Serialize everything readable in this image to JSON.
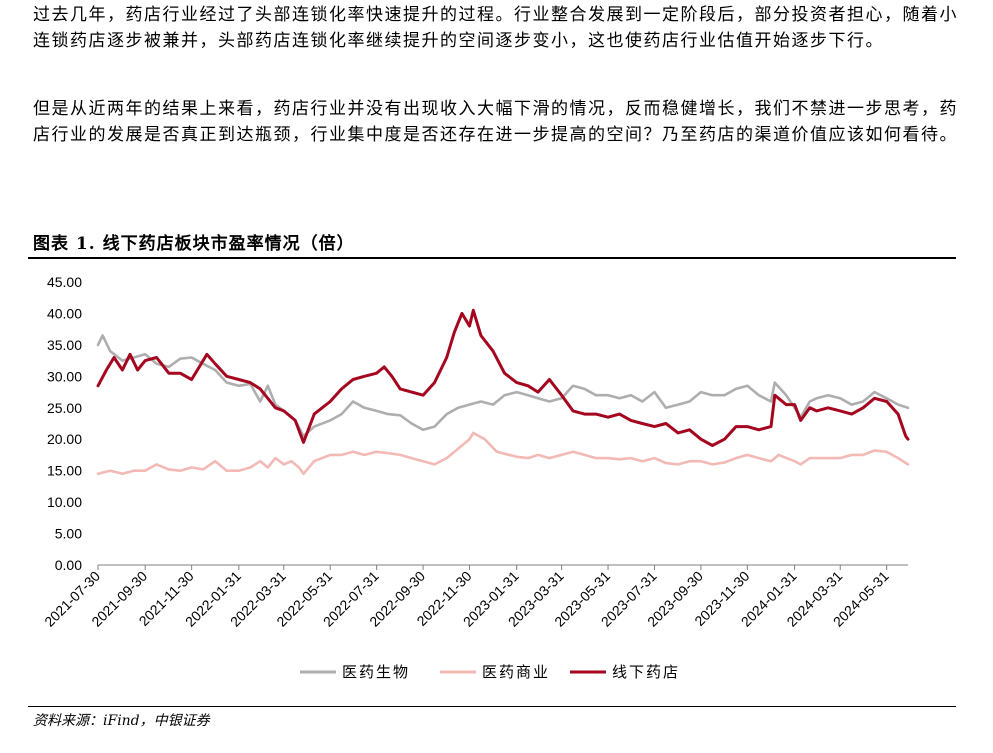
{
  "paragraphs": [
    "过去几年，药店行业经过了头部连锁化率快速提升的过程。行业整合发展到一定阶段后，部分投资者担心，随着小连锁药店逐步被兼并，头部药店连锁化率继续提升的空间逐步变小，这也使药店行业估值开始逐步下行。",
    "但是从近两年的结果上来看，药店行业并没有出现收入大幅下滑的情况，反而稳健增长，我们不禁进一步思考，药店行业的发展是否真正到达瓶颈，行业集中度是否还存在进一步提高的空间？乃至药店的渠道价值应该如何看待。"
  ],
  "figure_title": "图表 1. 线下药店板块市盈率情况（倍）",
  "source": "资料来源：iFind，中银证券",
  "chart_data": {
    "type": "line",
    "title": "图表 1. 线下药店板块市盈率情况（倍）",
    "ylim": [
      0,
      45
    ],
    "yticks": [
      "0.00",
      "5.00",
      "10.00",
      "15.00",
      "20.00",
      "25.00",
      "30.00",
      "35.00",
      "40.00",
      "45.00"
    ],
    "x_start": "2021-07-30",
    "x_end": "2024-06-28",
    "xticks": [
      "2021-07-30",
      "2021-09-30",
      "2021-11-30",
      "2022-01-31",
      "2022-03-31",
      "2022-05-31",
      "2022-07-31",
      "2022-09-30",
      "2022-11-30",
      "2023-01-31",
      "2023-03-31",
      "2023-05-31",
      "2023-07-31",
      "2023-09-30",
      "2023-11-30",
      "2024-01-31",
      "2024-03-31",
      "2024-05-31"
    ],
    "grid": false,
    "legend_position": "bottom",
    "series": [
      {
        "name": "医药生物",
        "color": "#aeaeae",
        "points": [
          [
            "2021-07-30",
            35.0
          ],
          [
            "2021-08-05",
            36.5
          ],
          [
            "2021-08-15",
            34.0
          ],
          [
            "2021-08-31",
            32.5
          ],
          [
            "2021-09-15",
            33.0
          ],
          [
            "2021-09-30",
            33.5
          ],
          [
            "2021-10-15",
            32.0
          ],
          [
            "2021-10-31",
            31.5
          ],
          [
            "2021-11-15",
            32.8
          ],
          [
            "2021-11-30",
            33.0
          ],
          [
            "2021-12-15",
            32.0
          ],
          [
            "2021-12-31",
            31.0
          ],
          [
            "2022-01-15",
            29.0
          ],
          [
            "2022-01-31",
            28.5
          ],
          [
            "2022-02-15",
            28.8
          ],
          [
            "2022-02-28",
            26.0
          ],
          [
            "2022-03-10",
            28.5
          ],
          [
            "2022-03-20",
            25.5
          ],
          [
            "2022-03-31",
            24.5
          ],
          [
            "2022-04-15",
            23.0
          ],
          [
            "2022-04-26",
            20.5
          ],
          [
            "2022-05-10",
            22.0
          ],
          [
            "2022-05-31",
            23.0
          ],
          [
            "2022-06-15",
            24.0
          ],
          [
            "2022-06-30",
            26.0
          ],
          [
            "2022-07-15",
            25.0
          ],
          [
            "2022-07-31",
            24.5
          ],
          [
            "2022-08-15",
            24.0
          ],
          [
            "2022-08-31",
            23.8
          ],
          [
            "2022-09-15",
            22.5
          ],
          [
            "2022-09-30",
            21.5
          ],
          [
            "2022-10-15",
            22.0
          ],
          [
            "2022-10-31",
            24.0
          ],
          [
            "2022-11-15",
            25.0
          ],
          [
            "2022-11-30",
            25.5
          ],
          [
            "2022-12-15",
            26.0
          ],
          [
            "2022-12-31",
            25.5
          ],
          [
            "2023-01-15",
            27.0
          ],
          [
            "2023-01-31",
            27.5
          ],
          [
            "2023-02-15",
            27.0
          ],
          [
            "2023-02-28",
            26.5
          ],
          [
            "2023-03-15",
            26.0
          ],
          [
            "2023-03-31",
            26.5
          ],
          [
            "2023-04-15",
            28.5
          ],
          [
            "2023-04-30",
            28.0
          ],
          [
            "2023-05-15",
            27.0
          ],
          [
            "2023-05-31",
            27.0
          ],
          [
            "2023-06-15",
            26.5
          ],
          [
            "2023-06-30",
            27.0
          ],
          [
            "2023-07-15",
            26.0
          ],
          [
            "2023-07-31",
            27.5
          ],
          [
            "2023-08-15",
            25.0
          ],
          [
            "2023-08-31",
            25.5
          ],
          [
            "2023-09-15",
            26.0
          ],
          [
            "2023-09-30",
            27.5
          ],
          [
            "2023-10-15",
            27.0
          ],
          [
            "2023-10-31",
            27.0
          ],
          [
            "2023-11-15",
            28.0
          ],
          [
            "2023-11-30",
            28.5
          ],
          [
            "2023-12-15",
            27.0
          ],
          [
            "2023-12-31",
            26.0
          ],
          [
            "2024-01-05",
            29.0
          ],
          [
            "2024-01-20",
            27.0
          ],
          [
            "2024-01-31",
            25.0
          ],
          [
            "2024-02-08",
            23.5
          ],
          [
            "2024-02-20",
            26.0
          ],
          [
            "2024-02-29",
            26.5
          ],
          [
            "2024-03-15",
            27.0
          ],
          [
            "2024-03-31",
            26.5
          ],
          [
            "2024-04-15",
            25.5
          ],
          [
            "2024-04-30",
            26.0
          ],
          [
            "2024-05-15",
            27.5
          ],
          [
            "2024-05-31",
            26.5
          ],
          [
            "2024-06-15",
            25.5
          ],
          [
            "2024-06-28",
            25.0
          ]
        ]
      },
      {
        "name": "医药商业",
        "color": "#f2b9b5",
        "points": [
          [
            "2021-07-30",
            14.5
          ],
          [
            "2021-08-15",
            15.0
          ],
          [
            "2021-08-31",
            14.5
          ],
          [
            "2021-09-15",
            15.0
          ],
          [
            "2021-09-30",
            15.0
          ],
          [
            "2021-10-15",
            16.0
          ],
          [
            "2021-10-31",
            15.2
          ],
          [
            "2021-11-15",
            15.0
          ],
          [
            "2021-11-30",
            15.5
          ],
          [
            "2021-12-15",
            15.2
          ],
          [
            "2021-12-31",
            16.5
          ],
          [
            "2022-01-15",
            15.0
          ],
          [
            "2022-01-31",
            15.0
          ],
          [
            "2022-02-15",
            15.5
          ],
          [
            "2022-02-28",
            16.5
          ],
          [
            "2022-03-10",
            15.5
          ],
          [
            "2022-03-20",
            17.0
          ],
          [
            "2022-03-31",
            16.0
          ],
          [
            "2022-04-10",
            16.5
          ],
          [
            "2022-04-20",
            15.5
          ],
          [
            "2022-04-26",
            14.5
          ],
          [
            "2022-05-10",
            16.5
          ],
          [
            "2022-05-31",
            17.5
          ],
          [
            "2022-06-15",
            17.5
          ],
          [
            "2022-06-30",
            18.0
          ],
          [
            "2022-07-15",
            17.5
          ],
          [
            "2022-07-31",
            18.0
          ],
          [
            "2022-08-15",
            17.8
          ],
          [
            "2022-08-31",
            17.5
          ],
          [
            "2022-09-15",
            17.0
          ],
          [
            "2022-09-30",
            16.5
          ],
          [
            "2022-10-15",
            16.0
          ],
          [
            "2022-10-31",
            17.0
          ],
          [
            "2022-11-15",
            18.5
          ],
          [
            "2022-11-30",
            20.0
          ],
          [
            "2022-12-05",
            21.0
          ],
          [
            "2022-12-20",
            20.0
          ],
          [
            "2023-01-05",
            18.0
          ],
          [
            "2023-01-31",
            17.2
          ],
          [
            "2023-02-15",
            17.0
          ],
          [
            "2023-02-28",
            17.5
          ],
          [
            "2023-03-15",
            17.0
          ],
          [
            "2023-03-31",
            17.5
          ],
          [
            "2023-04-15",
            18.0
          ],
          [
            "2023-04-30",
            17.5
          ],
          [
            "2023-05-15",
            17.0
          ],
          [
            "2023-05-31",
            17.0
          ],
          [
            "2023-06-15",
            16.8
          ],
          [
            "2023-06-30",
            17.0
          ],
          [
            "2023-07-15",
            16.5
          ],
          [
            "2023-07-31",
            17.0
          ],
          [
            "2023-08-15",
            16.2
          ],
          [
            "2023-08-31",
            16.0
          ],
          [
            "2023-09-15",
            16.5
          ],
          [
            "2023-09-30",
            16.5
          ],
          [
            "2023-10-15",
            16.0
          ],
          [
            "2023-10-31",
            16.3
          ],
          [
            "2023-11-15",
            17.0
          ],
          [
            "2023-11-30",
            17.5
          ],
          [
            "2023-12-15",
            17.0
          ],
          [
            "2023-12-31",
            16.5
          ],
          [
            "2024-01-10",
            17.5
          ],
          [
            "2024-01-31",
            16.5
          ],
          [
            "2024-02-08",
            16.0
          ],
          [
            "2024-02-20",
            17.0
          ],
          [
            "2024-02-29",
            17.0
          ],
          [
            "2024-03-15",
            17.0
          ],
          [
            "2024-03-31",
            17.0
          ],
          [
            "2024-04-15",
            17.5
          ],
          [
            "2024-04-30",
            17.5
          ],
          [
            "2024-05-15",
            18.2
          ],
          [
            "2024-05-31",
            18.0
          ],
          [
            "2024-06-15",
            17.0
          ],
          [
            "2024-06-28",
            16.0
          ]
        ]
      },
      {
        "name": "线下药店",
        "color": "#a5051f",
        "points": [
          [
            "2021-07-30",
            28.5
          ],
          [
            "2021-08-10",
            31.0
          ],
          [
            "2021-08-20",
            33.0
          ],
          [
            "2021-08-31",
            31.0
          ],
          [
            "2021-09-10",
            33.5
          ],
          [
            "2021-09-20",
            31.0
          ],
          [
            "2021-09-30",
            32.5
          ],
          [
            "2021-10-15",
            33.0
          ],
          [
            "2021-10-31",
            30.5
          ],
          [
            "2021-11-15",
            30.5
          ],
          [
            "2021-11-30",
            29.5
          ],
          [
            "2021-12-10",
            31.5
          ],
          [
            "2021-12-20",
            33.5
          ],
          [
            "2021-12-31",
            32.0
          ],
          [
            "2022-01-15",
            30.0
          ],
          [
            "2022-01-31",
            29.5
          ],
          [
            "2022-02-15",
            29.0
          ],
          [
            "2022-02-28",
            28.0
          ],
          [
            "2022-03-10",
            26.5
          ],
          [
            "2022-03-20",
            25.0
          ],
          [
            "2022-03-31",
            24.5
          ],
          [
            "2022-04-15",
            23.0
          ],
          [
            "2022-04-26",
            19.5
          ],
          [
            "2022-05-10",
            24.0
          ],
          [
            "2022-05-31",
            26.0
          ],
          [
            "2022-06-15",
            28.0
          ],
          [
            "2022-06-30",
            29.5
          ],
          [
            "2022-07-15",
            30.0
          ],
          [
            "2022-07-31",
            30.5
          ],
          [
            "2022-08-10",
            31.5
          ],
          [
            "2022-08-20",
            30.0
          ],
          [
            "2022-08-31",
            28.0
          ],
          [
            "2022-09-15",
            27.5
          ],
          [
            "2022-09-30",
            27.0
          ],
          [
            "2022-10-15",
            29.0
          ],
          [
            "2022-10-31",
            33.0
          ],
          [
            "2022-11-10",
            37.0
          ],
          [
            "2022-11-20",
            40.0
          ],
          [
            "2022-11-30",
            38.0
          ],
          [
            "2022-12-05",
            40.5
          ],
          [
            "2022-12-15",
            36.5
          ],
          [
            "2022-12-31",
            34.0
          ],
          [
            "2023-01-15",
            30.5
          ],
          [
            "2023-01-31",
            29.0
          ],
          [
            "2023-02-15",
            28.5
          ],
          [
            "2023-02-28",
            27.5
          ],
          [
            "2023-03-15",
            29.5
          ],
          [
            "2023-03-31",
            27.0
          ],
          [
            "2023-04-15",
            24.5
          ],
          [
            "2023-04-30",
            24.0
          ],
          [
            "2023-05-15",
            24.0
          ],
          [
            "2023-05-31",
            23.5
          ],
          [
            "2023-06-15",
            24.0
          ],
          [
            "2023-06-30",
            23.0
          ],
          [
            "2023-07-15",
            22.5
          ],
          [
            "2023-07-31",
            22.0
          ],
          [
            "2023-08-15",
            22.5
          ],
          [
            "2023-08-31",
            21.0
          ],
          [
            "2023-09-15",
            21.5
          ],
          [
            "2023-09-30",
            20.0
          ],
          [
            "2023-10-15",
            19.0
          ],
          [
            "2023-10-31",
            20.0
          ],
          [
            "2023-11-15",
            22.0
          ],
          [
            "2023-11-30",
            22.0
          ],
          [
            "2023-12-15",
            21.5
          ],
          [
            "2023-12-31",
            22.0
          ],
          [
            "2024-01-05",
            27.0
          ],
          [
            "2024-01-20",
            25.5
          ],
          [
            "2024-01-31",
            25.5
          ],
          [
            "2024-02-08",
            23.0
          ],
          [
            "2024-02-20",
            25.0
          ],
          [
            "2024-02-29",
            24.5
          ],
          [
            "2024-03-15",
            25.0
          ],
          [
            "2024-03-31",
            24.5
          ],
          [
            "2024-04-15",
            24.0
          ],
          [
            "2024-04-30",
            25.0
          ],
          [
            "2024-05-15",
            26.5
          ],
          [
            "2024-05-31",
            26.0
          ],
          [
            "2024-06-15",
            24.0
          ],
          [
            "2024-06-25",
            20.5
          ],
          [
            "2024-06-28",
            20.0
          ]
        ]
      }
    ]
  }
}
